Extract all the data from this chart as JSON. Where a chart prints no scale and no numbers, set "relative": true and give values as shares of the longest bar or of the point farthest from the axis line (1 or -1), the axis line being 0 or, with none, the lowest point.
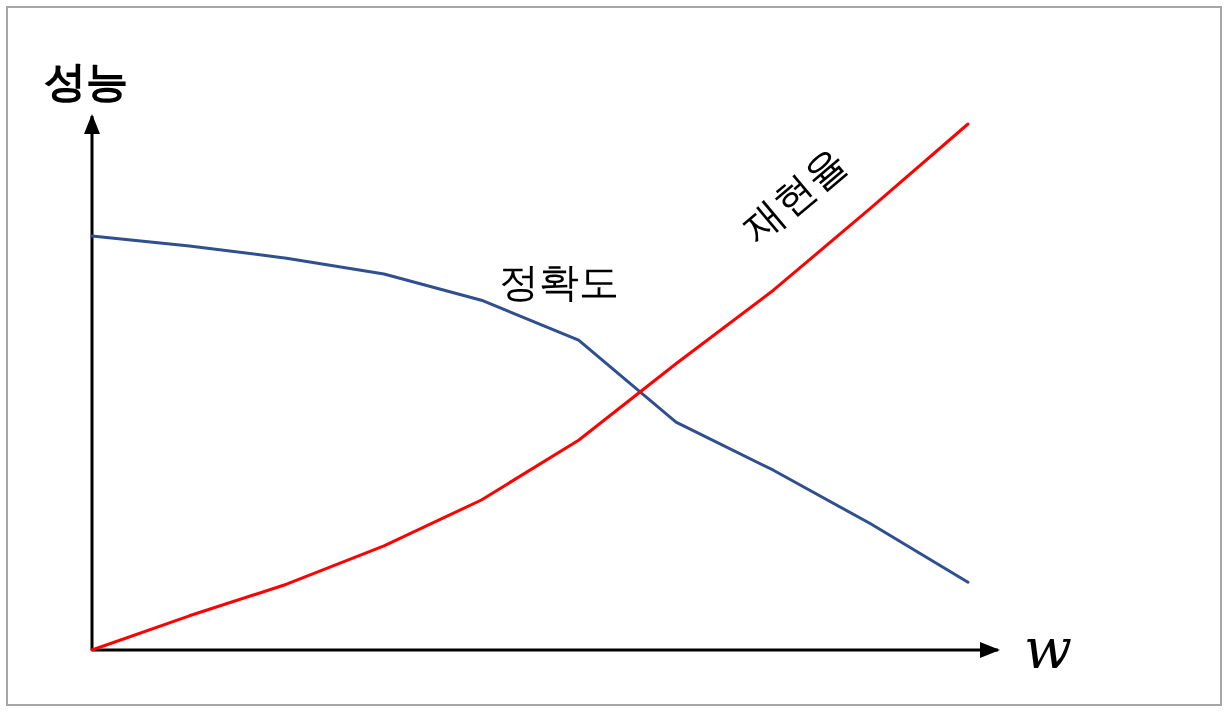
{
  "chart_data": {
    "type": "line",
    "relative": true,
    "xlabel": "w",
    "ylabel": "성능",
    "line_style": "solid",
    "categories": [
      null,
      null,
      null,
      null,
      null,
      null,
      null,
      null,
      null,
      null
    ],
    "series": [
      {
        "name": "정확도",
        "color": "#2f4f8f",
        "values": [
          0.787,
          0.768,
          0.745,
          0.715,
          0.665,
          0.589,
          0.433,
          0.342,
          0.24,
          0.129
        ]
      },
      {
        "name": "재현율",
        "color": "#ff0000",
        "values": [
          0,
          0.065,
          0.125,
          0.198,
          0.285,
          0.399,
          0.544,
          0.684,
          0.84,
          1
        ]
      }
    ]
  }
}
